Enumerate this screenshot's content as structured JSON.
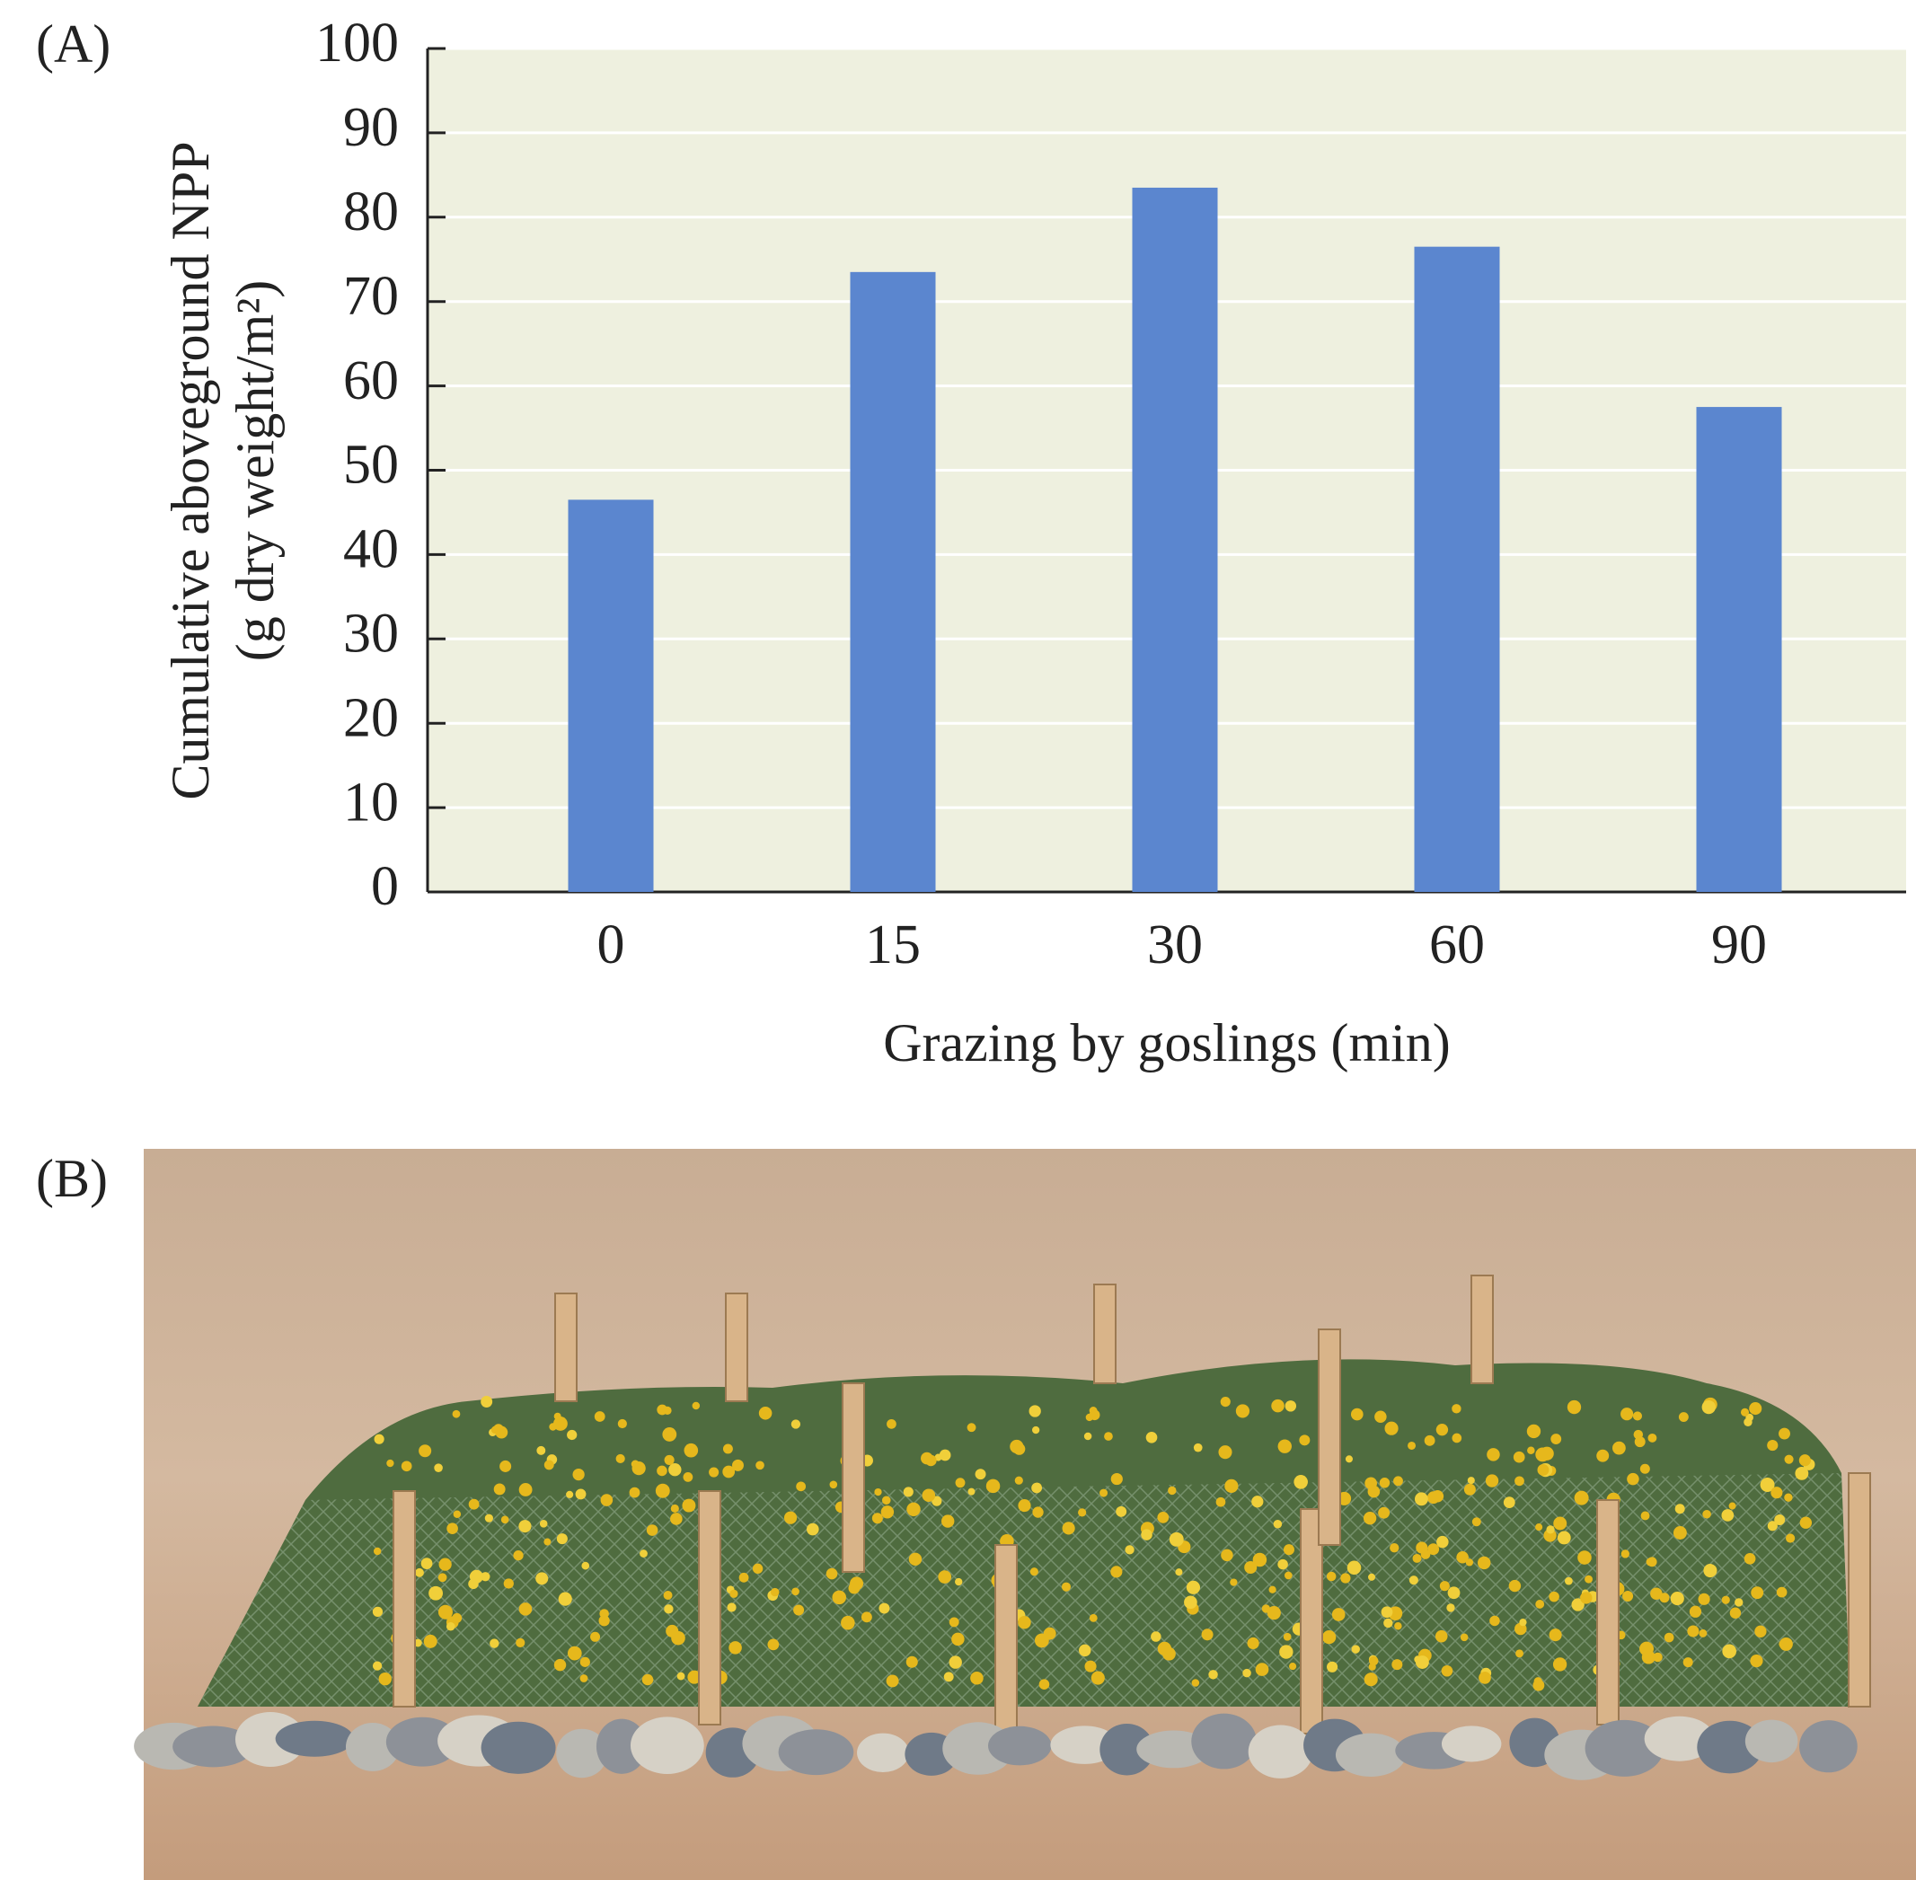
{
  "chart_data": {
    "type": "bar",
    "panel_labels": [
      "(A)",
      "(B)"
    ],
    "ylabel": [
      "Cumulative aboveground NPP",
      "(g dry weight/m²)"
    ],
    "xlabel": "Grazing by goslings (min)",
    "categories": [
      "0",
      "15",
      "30",
      "60",
      "90"
    ],
    "values": [
      46.5,
      73.5,
      83.5,
      76.5,
      57.5
    ],
    "color": "#5b86cf",
    "ylim": [
      0,
      100
    ],
    "yticks": [
      0,
      10,
      20,
      30,
      40,
      50,
      60,
      70,
      80,
      90,
      100
    ],
    "grid": true
  }
}
